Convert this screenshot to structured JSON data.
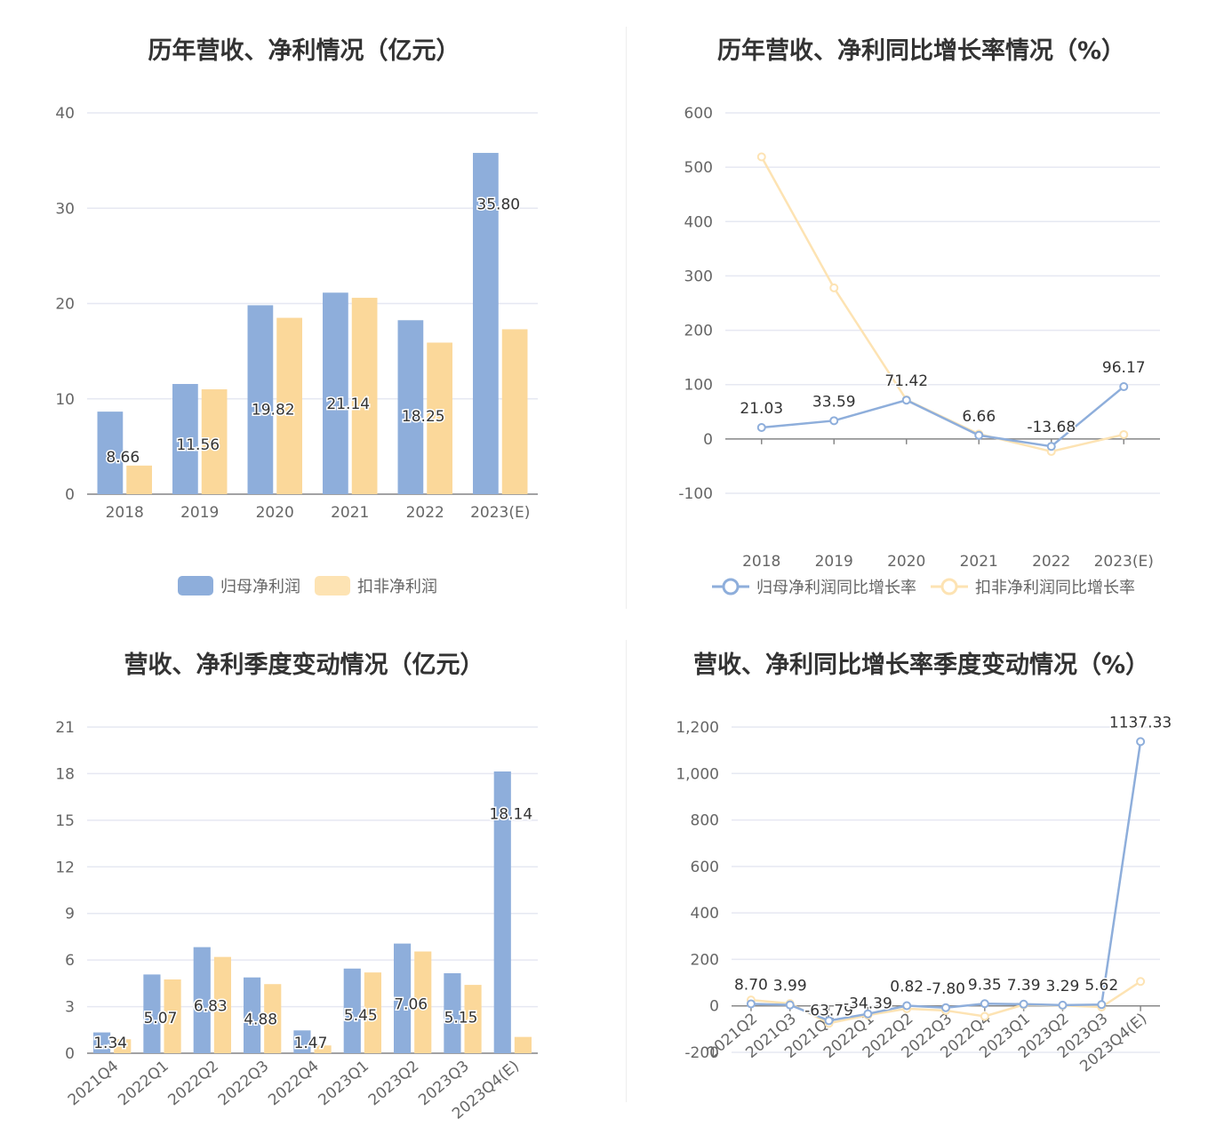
{
  "colors": {
    "blue": "#8eaedb",
    "orange": "#fbd89a",
    "grid": "#e6e8f2",
    "axis": "#666666"
  },
  "panels": [
    {
      "title": "历年营收、净利情况（亿元）",
      "legend": [
        {
          "label": "归母净利润",
          "color": "#8eaedb"
        },
        {
          "label": "扣非净利润",
          "color": "#fbd89a"
        }
      ]
    },
    {
      "title": "历年营收、净利同比增长率情况（%）",
      "legend": [
        {
          "label": "归母净利润同比增长率",
          "color": "#8eaedb"
        },
        {
          "label": "扣非净利润同比增长率",
          "color": "#fbd89a"
        }
      ]
    },
    {
      "title": "营收、净利季度变动情况（亿元）"
    },
    {
      "title": "营收、净利同比增长率季度变动情况（%）"
    }
  ],
  "chart_data": [
    {
      "type": "bar",
      "title": "历年营收、净利情况（亿元）",
      "categories": [
        "2018",
        "2019",
        "2020",
        "2021",
        "2022",
        "2023(E)"
      ],
      "ylim": [
        0,
        40
      ],
      "yticks": [
        "0",
        "10",
        "20",
        "30",
        "40"
      ],
      "series": [
        {
          "name": "归母净利润",
          "values": [
            8.66,
            11.56,
            19.82,
            21.14,
            18.25,
            35.8
          ],
          "labels": [
            "8.66",
            "11.56",
            "19.82",
            "21.14",
            "18.25",
            "35.80"
          ]
        },
        {
          "name": "扣非净利润",
          "values": [
            3.0,
            11.0,
            18.5,
            20.6,
            15.9,
            17.3
          ]
        }
      ],
      "grid": true,
      "legend_position": "bottom"
    },
    {
      "type": "line",
      "title": "历年营收、净利同比增长率情况（%）",
      "categories": [
        "2018",
        "2019",
        "2020",
        "2021",
        "2022",
        "2023(E)"
      ],
      "ylim": [
        -100,
        600
      ],
      "yticks": [
        "-100",
        "0",
        "100",
        "200",
        "300",
        "400",
        "500",
        "600"
      ],
      "series": [
        {
          "name": "归母净利润同比增长率",
          "values": [
            21.03,
            33.59,
            71.42,
            6.66,
            -13.68,
            96.17
          ],
          "labels": [
            "21.03",
            "33.59",
            "71.42",
            "6.66",
            "-13.68",
            "96.17"
          ]
        },
        {
          "name": "扣非净利润同比增长率",
          "values": [
            519,
            278,
            72,
            9,
            -23,
            8
          ]
        }
      ],
      "grid": true,
      "legend_position": "bottom"
    },
    {
      "type": "bar",
      "title": "营收、净利季度变动情况（亿元）",
      "categories": [
        "2021Q4",
        "2022Q1",
        "2022Q2",
        "2022Q3",
        "2022Q4",
        "2023Q1",
        "2023Q2",
        "2023Q3",
        "2023Q4(E)"
      ],
      "ylim": [
        0,
        21
      ],
      "yticks": [
        "0",
        "3",
        "6",
        "9",
        "12",
        "15",
        "18",
        "21"
      ],
      "series": [
        {
          "name": "归母净利润",
          "values": [
            1.34,
            5.07,
            6.83,
            4.88,
            1.47,
            5.45,
            7.06,
            5.15,
            18.14
          ],
          "labels": [
            "1.34",
            "5.07",
            "6.83",
            "4.88",
            "1.47",
            "5.45",
            "7.06",
            "5.15",
            "18.14"
          ]
        },
        {
          "name": "扣非净利润",
          "values": [
            0.9,
            4.75,
            6.2,
            4.45,
            0.5,
            5.2,
            6.55,
            4.4,
            1.05
          ]
        }
      ],
      "grid": true
    },
    {
      "type": "line",
      "title": "营收、净利同比增长率季度变动情况（%）",
      "categories": [
        "2021Q2",
        "2021Q3",
        "2021Q4",
        "2022Q1",
        "2022Q2",
        "2022Q3",
        "2022Q4",
        "2023Q1",
        "2023Q2",
        "2023Q3",
        "2023Q4(E)"
      ],
      "ylim": [
        -200,
        1200
      ],
      "yticks": [
        "-200",
        "0",
        "200",
        "400",
        "600",
        "800",
        "1,000",
        "1,200"
      ],
      "series": [
        {
          "name": "归母净利润同比增长率",
          "values": [
            8.7,
            3.99,
            -63.79,
            -34.39,
            0.82,
            -7.8,
            9.35,
            7.39,
            3.29,
            5.62,
            1137.33
          ],
          "labels": [
            "8.70",
            "3.99",
            "-63.79",
            "-34.39",
            "0.82",
            "-7.80",
            "9.35",
            "7.39",
            "3.29",
            "5.62",
            "1137.33"
          ]
        },
        {
          "name": "扣非净利润同比增长率",
          "values": [
            25,
            10,
            -75,
            -40,
            -12,
            -20,
            -45,
            5,
            2,
            -5,
            105
          ]
        }
      ],
      "grid": true
    }
  ]
}
